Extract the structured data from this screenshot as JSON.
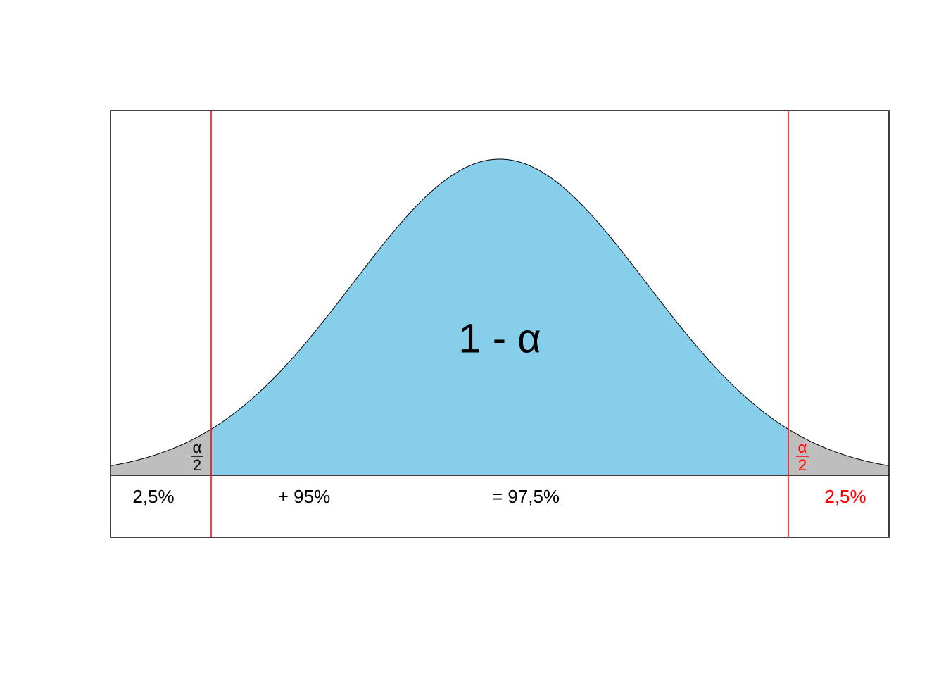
{
  "center_label": "1 - α",
  "left_tail": {
    "numerator": "α",
    "denominator": "2"
  },
  "right_tail": {
    "numerator": "α",
    "denominator": "2"
  },
  "bottom_labels": [
    "2,5%",
    "+ 95%",
    "=  97,5%",
    "2,5%"
  ]
}
